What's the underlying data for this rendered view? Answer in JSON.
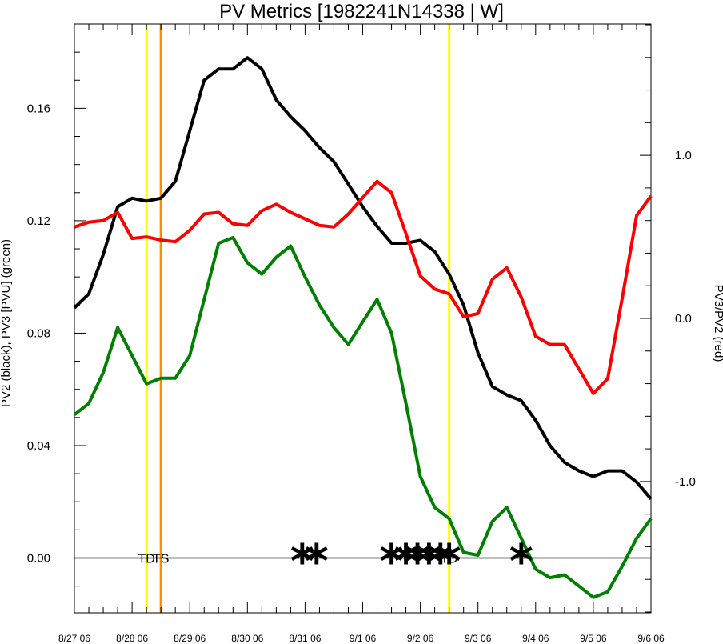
{
  "chart_data": {
    "type": "line",
    "title": "PV Metrics [1982241N14338 | W]",
    "ylabel_left": "PV2 (black), PV3 [PVU] (green)",
    "ylabel_right": "PV3/PV2 (red)",
    "ylim_left": [
      -0.0195,
      0.19
    ],
    "ylim_right": [
      -1.805,
      1.805
    ],
    "yticks_left": [
      0.0,
      0.04,
      0.08,
      0.12,
      0.16
    ],
    "yticks_left_labels": [
      "0.00",
      "0.04",
      "0.08",
      "0.12",
      "0.16"
    ],
    "yticks_right": [
      -1.0,
      0.0,
      1.0
    ],
    "yticks_right_labels": [
      "-1.0",
      "0.0",
      "1.0"
    ],
    "xlim": [
      0,
      10
    ],
    "x_tick_labels": [
      "8/27 06",
      "8/28 06",
      "8/29 06",
      "8/30 06",
      "8/31 06",
      "9/1 06",
      "9/2 06",
      "9/3 06",
      "9/4 06",
      "9/5 06",
      "9/6 06"
    ],
    "x": [
      0,
      0.25,
      0.5,
      0.75,
      1,
      1.25,
      1.5,
      1.75,
      2,
      2.25,
      2.5,
      2.75,
      3,
      3.25,
      3.5,
      3.75,
      4,
      4.25,
      4.5,
      4.75,
      5,
      5.25,
      5.5,
      5.75,
      6,
      6.25,
      6.5,
      6.75,
      7,
      7.25,
      7.5,
      7.75,
      8,
      8.25,
      8.5,
      8.75,
      9,
      9.25,
      9.5,
      9.75,
      10
    ],
    "series": [
      {
        "name": "PV2",
        "axis": "left",
        "color": "#000000",
        "values": [
          0.089,
          0.094,
          0.108,
          0.125,
          0.128,
          0.127,
          0.128,
          0.134,
          0.152,
          0.17,
          0.174,
          0.174,
          0.178,
          0.174,
          0.163,
          0.157,
          0.152,
          0.146,
          0.141,
          0.133,
          0.125,
          0.118,
          0.112,
          0.112,
          0.113,
          0.109,
          0.101,
          0.09,
          0.073,
          0.061,
          0.058,
          0.056,
          0.049,
          0.04,
          0.034,
          0.031,
          0.029,
          0.031,
          0.031,
          0.027,
          0.021
        ]
      },
      {
        "name": "PV3",
        "axis": "left",
        "color": "#008000",
        "values": [
          0.051,
          0.055,
          0.066,
          0.082,
          0.072,
          0.062,
          0.064,
          0.064,
          0.072,
          0.092,
          0.112,
          0.114,
          0.105,
          0.101,
          0.107,
          0.111,
          0.1,
          0.09,
          0.082,
          0.076,
          0.084,
          0.092,
          0.08,
          0.055,
          0.029,
          0.018,
          0.014,
          0.002,
          0.001,
          0.013,
          0.018,
          0.007,
          -0.004,
          -0.007,
          -0.006,
          -0.01,
          -0.014,
          -0.012,
          -0.003,
          0.007,
          0.014
        ]
      },
      {
        "name": "PV3/PV2",
        "axis": "right",
        "color": "#ff0000",
        "values": [
          0.56,
          0.59,
          0.6,
          0.65,
          0.49,
          0.5,
          0.48,
          0.47,
          0.54,
          0.64,
          0.65,
          0.58,
          0.57,
          0.66,
          0.7,
          0.65,
          0.61,
          0.57,
          0.56,
          0.64,
          0.74,
          0.84,
          0.77,
          0.52,
          0.26,
          0.18,
          0.15,
          0.01,
          0.03,
          0.24,
          0.31,
          0.13,
          -0.11,
          -0.16,
          -0.16,
          -0.31,
          -0.46,
          -0.37,
          0.12,
          0.63,
          0.75
        ]
      }
    ],
    "vertical_lines": [
      {
        "x": 1.25,
        "color": "#ffff00"
      },
      {
        "x": 1.5,
        "color": "#ff8c00"
      },
      {
        "x": 6.5,
        "color": "#ffff00"
      }
    ],
    "zero_line": 0.0,
    "markers_x": [
      3.95,
      4.2,
      5.5,
      5.75,
      5.95,
      6.15,
      6.35,
      6.5,
      7.75
    ],
    "marker_glyph": "*",
    "annotations": [
      {
        "text": "TD",
        "x": 1.25
      },
      {
        "text": "TS",
        "x": 1.5
      },
      {
        "text": "TD",
        "x": 6.5
      }
    ],
    "grid": false,
    "legend": "none"
  }
}
